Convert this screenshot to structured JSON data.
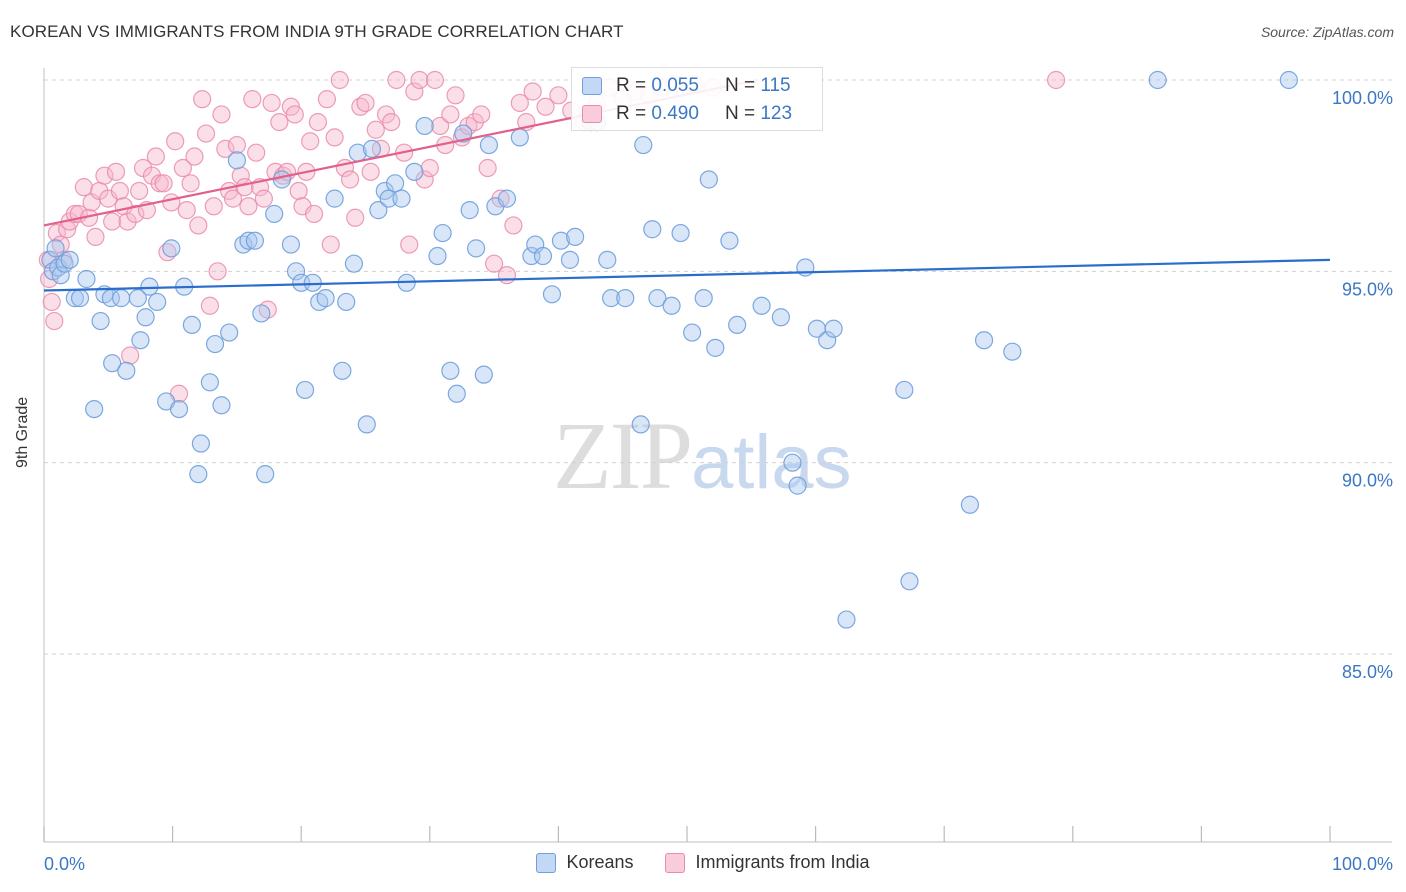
{
  "title": "KOREAN VS IMMIGRANTS FROM INDIA 9TH GRADE CORRELATION CHART",
  "source": "Source: ZipAtlas.com",
  "watermark_zip": "ZIP",
  "watermark_atlas": "atlas",
  "legend_top": {
    "r_label": "R =",
    "n_label": "N =",
    "koreans": {
      "r": "0.055",
      "n": "115"
    },
    "india": {
      "r": "0.490",
      "n": "123"
    }
  },
  "legend_bottom": {
    "koreans": "Koreans",
    "india": "Immigrants from India"
  },
  "colors": {
    "korean_fill": "#a9c8ef",
    "korean_stroke": "#6f9fdc",
    "korean_line": "#2a6dcc",
    "india_fill": "#f6b8cc",
    "india_stroke": "#ea8bab",
    "india_line": "#e2608c",
    "tick_text": "#3b78c3",
    "grid": "#d0d0d0"
  },
  "chart_data": {
    "type": "scatter",
    "title": "KOREAN VS IMMIGRANTS FROM INDIA 9TH GRADE CORRELATION CHART",
    "xlabel": "",
    "ylabel": "9th Grade",
    "xlim": [
      0,
      100
    ],
    "ylim": [
      79.5,
      100.8
    ],
    "x_tick_labels": [
      "0.0%",
      "100.0%"
    ],
    "y_ticks": [
      {
        "value": 100,
        "label": "100.0%"
      },
      {
        "value": 95,
        "label": "95.0%"
      },
      {
        "value": 90,
        "label": "90.0%"
      },
      {
        "value": 85,
        "label": "85.0%"
      }
    ],
    "series": [
      {
        "name": "Koreans",
        "r": 0.055,
        "n": 115,
        "trend": {
          "x": [
            0,
            100
          ],
          "y": [
            94.5,
            95.3
          ]
        },
        "points": [
          [
            0.5,
            95.3
          ],
          [
            0.7,
            95
          ],
          [
            0.9,
            95.6
          ],
          [
            1.1,
            95.1
          ],
          [
            1.3,
            94.9
          ],
          [
            1.6,
            95.2
          ],
          [
            2.0,
            95.3
          ],
          [
            2.4,
            94.3
          ],
          [
            2.8,
            94.3
          ],
          [
            3.3,
            94.8
          ],
          [
            3.9,
            91.4
          ],
          [
            4.4,
            93.7
          ],
          [
            4.7,
            94.4
          ],
          [
            5.2,
            94.3
          ],
          [
            5.3,
            92.6
          ],
          [
            6.0,
            94.3
          ],
          [
            6.4,
            92.4
          ],
          [
            7.3,
            94.3
          ],
          [
            7.5,
            93.2
          ],
          [
            7.9,
            93.8
          ],
          [
            8.2,
            94.6
          ],
          [
            8.8,
            94.2
          ],
          [
            9.5,
            91.6
          ],
          [
            9.9,
            95.6
          ],
          [
            10.5,
            91.4
          ],
          [
            10.9,
            94.6
          ],
          [
            11.5,
            93.6
          ],
          [
            12.0,
            89.7
          ],
          [
            12.2,
            90.5
          ],
          [
            12.9,
            92.1
          ],
          [
            13.3,
            93.1
          ],
          [
            13.8,
            91.5
          ],
          [
            14.4,
            93.4
          ],
          [
            15.0,
            97.9
          ],
          [
            15.5,
            95.7
          ],
          [
            15.9,
            95.8
          ],
          [
            16.4,
            95.8
          ],
          [
            16.9,
            93.9
          ],
          [
            17.2,
            89.7
          ],
          [
            17.9,
            96.5
          ],
          [
            18.5,
            97.4
          ],
          [
            19.2,
            95.7
          ],
          [
            19.6,
            95
          ],
          [
            20.0,
            94.7
          ],
          [
            20.3,
            91.9
          ],
          [
            20.9,
            94.7
          ],
          [
            21.4,
            94.2
          ],
          [
            21.9,
            94.3
          ],
          [
            22.6,
            96.9
          ],
          [
            23.2,
            92.4
          ],
          [
            23.5,
            94.2
          ],
          [
            24.1,
            95.2
          ],
          [
            24.4,
            98.1
          ],
          [
            25.1,
            91
          ],
          [
            25.5,
            98.2
          ],
          [
            26.0,
            96.6
          ],
          [
            26.5,
            97.1
          ],
          [
            26.8,
            96.9
          ],
          [
            27.3,
            97.3
          ],
          [
            27.8,
            96.9
          ],
          [
            28.2,
            94.7
          ],
          [
            28.8,
            97.6
          ],
          [
            29.6,
            98.8
          ],
          [
            30.6,
            95.4
          ],
          [
            31.0,
            96
          ],
          [
            31.6,
            92.4
          ],
          [
            32.1,
            91.8
          ],
          [
            32.6,
            98.6
          ],
          [
            33.1,
            96.6
          ],
          [
            33.6,
            95.6
          ],
          [
            34.2,
            92.3
          ],
          [
            34.6,
            98.3
          ],
          [
            35.1,
            96.7
          ],
          [
            36.0,
            96.9
          ],
          [
            37.0,
            98.5
          ],
          [
            37.9,
            95.4
          ],
          [
            38.2,
            95.7
          ],
          [
            38.8,
            95.4
          ],
          [
            39.5,
            94.4
          ],
          [
            40.2,
            95.8
          ],
          [
            40.9,
            95.3
          ],
          [
            41.3,
            95.9
          ],
          [
            42.5,
            98.9
          ],
          [
            43.0,
            98.9
          ],
          [
            43.8,
            95.3
          ],
          [
            44.1,
            94.3
          ],
          [
            45.2,
            94.3
          ],
          [
            46.4,
            91
          ],
          [
            46.6,
            98.3
          ],
          [
            47.3,
            96.1
          ],
          [
            47.7,
            94.3
          ],
          [
            48.8,
            94.1
          ],
          [
            49.5,
            96
          ],
          [
            50.4,
            93.4
          ],
          [
            51.3,
            94.3
          ],
          [
            51.7,
            97.4
          ],
          [
            52.2,
            93
          ],
          [
            53.3,
            95.8
          ],
          [
            53.9,
            93.6
          ],
          [
            55.8,
            94.1
          ],
          [
            57.3,
            93.8
          ],
          [
            58.2,
            90
          ],
          [
            58.6,
            89.4
          ],
          [
            59.2,
            95.1
          ],
          [
            60.1,
            93.5
          ],
          [
            60.9,
            93.2
          ],
          [
            61.4,
            93.5
          ],
          [
            62.4,
            85.9
          ],
          [
            66.9,
            91.9
          ],
          [
            67.3,
            86.9
          ],
          [
            72.0,
            88.9
          ],
          [
            73.1,
            93.2
          ],
          [
            75.3,
            92.9
          ],
          [
            86.6,
            100
          ],
          [
            96.8,
            100
          ]
        ]
      },
      {
        "name": "Immigrants from India",
        "r": 0.49,
        "n": 123,
        "trend": {
          "x": [
            0,
            55.5
          ],
          "y": [
            96.2,
            100.0
          ]
        },
        "points": [
          [
            0.3,
            95.3
          ],
          [
            0.4,
            94.8
          ],
          [
            0.6,
            94.2
          ],
          [
            0.8,
            93.7
          ],
          [
            1.0,
            96
          ],
          [
            1.3,
            95.7
          ],
          [
            1.5,
            95.3
          ],
          [
            1.8,
            96.1
          ],
          [
            2.0,
            96.3
          ],
          [
            2.4,
            96.5
          ],
          [
            2.7,
            96.5
          ],
          [
            3.1,
            97.2
          ],
          [
            3.5,
            96.4
          ],
          [
            3.7,
            96.8
          ],
          [
            4.0,
            95.9
          ],
          [
            4.3,
            97.1
          ],
          [
            4.7,
            97.5
          ],
          [
            5.0,
            96.9
          ],
          [
            5.3,
            96.3
          ],
          [
            5.6,
            97.6
          ],
          [
            5.9,
            97.1
          ],
          [
            6.2,
            96.7
          ],
          [
            6.5,
            96.3
          ],
          [
            6.7,
            92.8
          ],
          [
            7.1,
            96.5
          ],
          [
            7.4,
            97.1
          ],
          [
            7.7,
            97.7
          ],
          [
            8.0,
            96.6
          ],
          [
            8.4,
            97.5
          ],
          [
            8.7,
            98
          ],
          [
            9.0,
            97.3
          ],
          [
            9.3,
            97.3
          ],
          [
            9.6,
            95.5
          ],
          [
            9.9,
            96.8
          ],
          [
            10.2,
            98.4
          ],
          [
            10.5,
            91.8
          ],
          [
            10.8,
            97.7
          ],
          [
            11.1,
            96.6
          ],
          [
            11.4,
            97.3
          ],
          [
            11.7,
            98
          ],
          [
            12.0,
            96.2
          ],
          [
            12.3,
            99.5
          ],
          [
            12.6,
            98.6
          ],
          [
            12.9,
            94.1
          ],
          [
            13.2,
            96.7
          ],
          [
            13.5,
            95
          ],
          [
            13.8,
            99.1
          ],
          [
            14.1,
            98.2
          ],
          [
            14.4,
            97.1
          ],
          [
            14.7,
            96.9
          ],
          [
            15.0,
            98.3
          ],
          [
            15.3,
            97.5
          ],
          [
            15.6,
            97.2
          ],
          [
            15.9,
            96.7
          ],
          [
            16.2,
            99.5
          ],
          [
            16.5,
            98.1
          ],
          [
            16.8,
            97.2
          ],
          [
            17.1,
            96.9
          ],
          [
            17.4,
            94
          ],
          [
            17.7,
            99.4
          ],
          [
            18.0,
            97.6
          ],
          [
            18.3,
            98.9
          ],
          [
            18.6,
            97.5
          ],
          [
            18.9,
            97.6
          ],
          [
            19.2,
            99.3
          ],
          [
            19.5,
            99.1
          ],
          [
            19.8,
            97.1
          ],
          [
            20.1,
            96.7
          ],
          [
            20.4,
            97.6
          ],
          [
            20.7,
            98.4
          ],
          [
            21.0,
            96.5
          ],
          [
            21.3,
            98.9
          ],
          [
            22.0,
            99.5
          ],
          [
            22.3,
            95.7
          ],
          [
            22.6,
            98.5
          ],
          [
            23.0,
            100
          ],
          [
            23.4,
            97.7
          ],
          [
            23.8,
            97.4
          ],
          [
            24.2,
            96.4
          ],
          [
            24.6,
            99.3
          ],
          [
            25.0,
            99.4
          ],
          [
            25.4,
            97.6
          ],
          [
            25.8,
            98.7
          ],
          [
            26.2,
            98.2
          ],
          [
            26.6,
            99.1
          ],
          [
            27.0,
            98.9
          ],
          [
            27.4,
            100
          ],
          [
            28.0,
            98.1
          ],
          [
            28.4,
            95.7
          ],
          [
            28.8,
            99.7
          ],
          [
            29.2,
            100
          ],
          [
            29.6,
            97.4
          ],
          [
            30.0,
            97.7
          ],
          [
            30.4,
            100
          ],
          [
            30.8,
            98.8
          ],
          [
            31.2,
            98.3
          ],
          [
            31.6,
            99.1
          ],
          [
            32.0,
            99.6
          ],
          [
            32.5,
            98.5
          ],
          [
            33.0,
            98.8
          ],
          [
            33.5,
            98.9
          ],
          [
            34.0,
            99.1
          ],
          [
            34.5,
            97.7
          ],
          [
            35.0,
            95.2
          ],
          [
            35.5,
            96.9
          ],
          [
            36.0,
            94.9
          ],
          [
            36.5,
            96.2
          ],
          [
            37.0,
            99.4
          ],
          [
            37.5,
            98.9
          ],
          [
            38.0,
            99.7
          ],
          [
            39.0,
            99.3
          ],
          [
            40.0,
            99.6
          ],
          [
            41.0,
            99.2
          ],
          [
            42.0,
            98.9
          ],
          [
            43.0,
            99.4
          ],
          [
            44.0,
            99.8
          ],
          [
            45.0,
            99.5
          ],
          [
            46.0,
            99.7
          ],
          [
            47.0,
            99.6
          ],
          [
            48.0,
            99.8
          ],
          [
            49.0,
            99.9
          ],
          [
            50.5,
            99.9
          ],
          [
            52.0,
            99.8
          ],
          [
            78.7,
            100
          ]
        ]
      }
    ]
  }
}
